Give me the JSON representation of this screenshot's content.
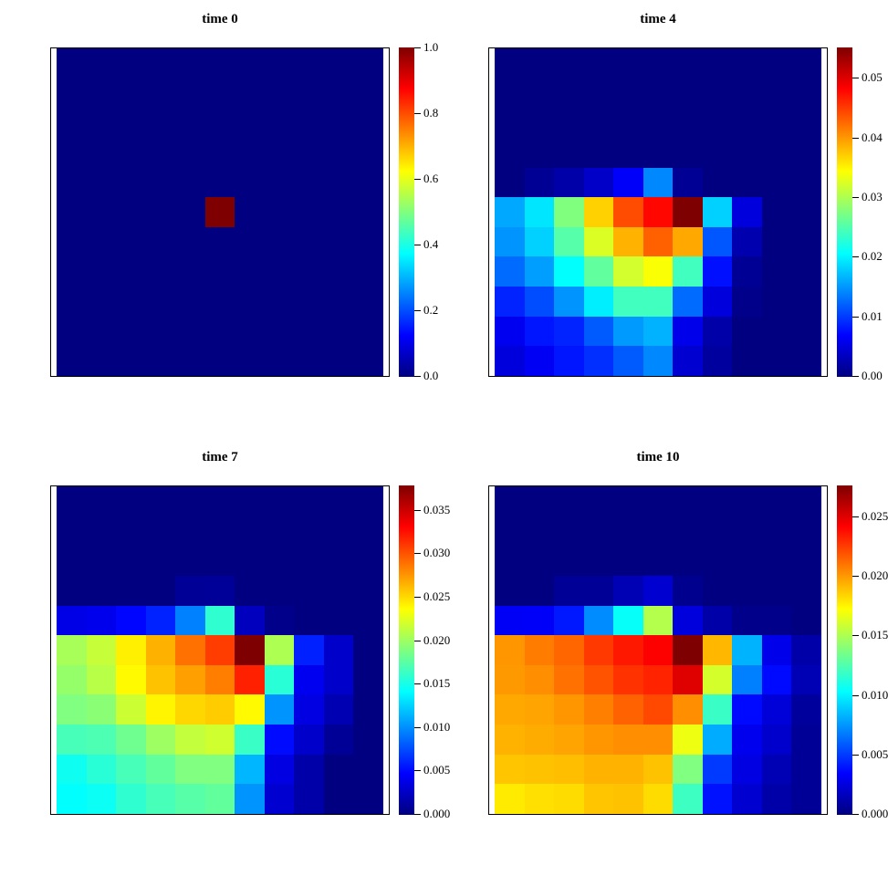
{
  "page": {
    "background": "#FFFFFF"
  },
  "colormap": {
    "name": "jet",
    "stops": [
      [
        0.0,
        "#000080"
      ],
      [
        0.125,
        "#0000FF"
      ],
      [
        0.375,
        "#00FFFF"
      ],
      [
        0.625,
        "#FFFF00"
      ],
      [
        0.875,
        "#FF0000"
      ],
      [
        1.0,
        "#7F0000"
      ]
    ]
  },
  "chart_data": [
    {
      "type": "heatmap",
      "title": "time 0",
      "rows": 11,
      "cols": 11,
      "zmax": 1.0,
      "colorbar_ticks": [
        0,
        0.2,
        0.4,
        0.6,
        0.8,
        1.0
      ],
      "tick_decimals": 1,
      "values": [
        [
          0,
          0,
          0,
          0,
          0,
          0,
          0,
          0,
          0,
          0,
          0
        ],
        [
          0,
          0,
          0,
          0,
          0,
          0,
          0,
          0,
          0,
          0,
          0
        ],
        [
          0,
          0,
          0,
          0,
          0,
          0,
          0,
          0,
          0,
          0,
          0
        ],
        [
          0,
          0,
          0,
          0,
          0,
          0,
          0,
          0,
          0,
          0,
          0
        ],
        [
          0,
          0,
          0,
          0,
          0,
          0,
          0,
          0,
          0,
          0,
          0
        ],
        [
          0,
          0,
          0,
          0,
          0,
          1.0,
          0,
          0,
          0,
          0,
          0
        ],
        [
          0,
          0,
          0,
          0,
          0,
          0,
          0,
          0,
          0,
          0,
          0
        ],
        [
          0,
          0,
          0,
          0,
          0,
          0,
          0,
          0,
          0,
          0,
          0
        ],
        [
          0,
          0,
          0,
          0,
          0,
          0,
          0,
          0,
          0,
          0,
          0
        ],
        [
          0,
          0,
          0,
          0,
          0,
          0,
          0,
          0,
          0,
          0,
          0
        ],
        [
          0,
          0,
          0,
          0,
          0,
          0,
          0,
          0,
          0,
          0,
          0
        ]
      ]
    },
    {
      "type": "heatmap",
      "title": "time 4",
      "rows": 11,
      "cols": 11,
      "zmax": 0.0551,
      "colorbar_ticks": [
        0,
        0.01,
        0.02,
        0.03,
        0.04,
        0.05
      ],
      "tick_decimals": 2,
      "values": [
        [
          0,
          0,
          0,
          0,
          0,
          0,
          0,
          0,
          0,
          0,
          0
        ],
        [
          0,
          0,
          0,
          0,
          0,
          0,
          0,
          0,
          0,
          0,
          0
        ],
        [
          0,
          0,
          0,
          0,
          0,
          0,
          0,
          0,
          0,
          0,
          0
        ],
        [
          0,
          0,
          0,
          0,
          0,
          0,
          0,
          0,
          0,
          0,
          0
        ],
        [
          0,
          0.0011,
          0.0022,
          0.0039,
          0.0066,
          0.0143,
          0.0011,
          0,
          0,
          0,
          0
        ],
        [
          0.016,
          0.0193,
          0.0276,
          0.0369,
          0.0441,
          0.0479,
          0.0551,
          0.0182,
          0.005,
          0,
          0
        ],
        [
          0.0149,
          0.0182,
          0.0253,
          0.0325,
          0.0386,
          0.043,
          0.0391,
          0.0116,
          0.0025,
          0,
          0
        ],
        [
          0.0127,
          0.0154,
          0.0207,
          0.0259,
          0.032,
          0.0342,
          0.0242,
          0.0077,
          0.0011,
          0,
          0
        ],
        [
          0.0088,
          0.011,
          0.0149,
          0.0198,
          0.0242,
          0.0242,
          0.0127,
          0.005,
          0.0006,
          0,
          0
        ],
        [
          0.0061,
          0.008,
          0.0088,
          0.0118,
          0.0152,
          0.0165,
          0.0058,
          0.0022,
          0,
          0,
          0
        ],
        [
          0.005,
          0.0063,
          0.008,
          0.0094,
          0.0118,
          0.0143,
          0.0044,
          0.0017,
          0,
          0,
          0
        ]
      ]
    },
    {
      "type": "heatmap",
      "title": "time 7",
      "rows": 11,
      "cols": 11,
      "zmax": 0.0378,
      "colorbar_ticks": [
        0,
        0.005,
        0.01,
        0.015,
        0.02,
        0.025,
        0.03,
        0.035
      ],
      "tick_decimals": 3,
      "values": [
        [
          0,
          0,
          0,
          0,
          0,
          0,
          0,
          0,
          0,
          0,
          0
        ],
        [
          0,
          0,
          0,
          0,
          0,
          0,
          0,
          0,
          0,
          0,
          0
        ],
        [
          0,
          0,
          0,
          0,
          0,
          0,
          0,
          0,
          0,
          0,
          0
        ],
        [
          0,
          0,
          0,
          0,
          0.0008,
          0.0009,
          0,
          0,
          0,
          0,
          0
        ],
        [
          0.0038,
          0.004,
          0.0049,
          0.006,
          0.0095,
          0.0159,
          0.0023,
          0.0004,
          0,
          0,
          0
        ],
        [
          0.0204,
          0.0215,
          0.0242,
          0.0265,
          0.0289,
          0.0308,
          0.0378,
          0.0206,
          0.0059,
          0.0028,
          0
        ],
        [
          0.0197,
          0.021,
          0.0238,
          0.0259,
          0.0272,
          0.0284,
          0.0319,
          0.0157,
          0.0042,
          0.0028,
          0
        ],
        [
          0.0189,
          0.0193,
          0.0217,
          0.024,
          0.0251,
          0.0255,
          0.0238,
          0.0102,
          0.0037,
          0.0019,
          0
        ],
        [
          0.0168,
          0.017,
          0.0183,
          0.02,
          0.0214,
          0.0219,
          0.0163,
          0.0051,
          0.0028,
          0.0008,
          0
        ],
        [
          0.0147,
          0.0157,
          0.0168,
          0.0178,
          0.0189,
          0.0189,
          0.0115,
          0.0037,
          0.0015,
          0,
          0
        ],
        [
          0.0142,
          0.0146,
          0.0159,
          0.0168,
          0.0174,
          0.0178,
          0.0102,
          0.003,
          0.0015,
          0,
          0
        ]
      ]
    },
    {
      "type": "heatmap",
      "title": "time 10",
      "rows": 11,
      "cols": 11,
      "zmax": 0.0276,
      "colorbar_ticks": [
        0,
        0.005,
        0.01,
        0.015,
        0.02,
        0.025
      ],
      "tick_decimals": 3,
      "values": [
        [
          0,
          0,
          0,
          0,
          0,
          0,
          0,
          0,
          0,
          0,
          0
        ],
        [
          0,
          0,
          0,
          0,
          0,
          0,
          0,
          0,
          0,
          0,
          0
        ],
        [
          0,
          0,
          0,
          0,
          0,
          0,
          0,
          0,
          0,
          0,
          0
        ],
        [
          0,
          0,
          0.0006,
          0.0006,
          0.0014,
          0.0022,
          0.0004,
          0,
          0,
          0,
          0
        ],
        [
          0.0032,
          0.0033,
          0.0041,
          0.0072,
          0.0105,
          0.0152,
          0.0025,
          0.0011,
          0.0003,
          0.0003,
          0
        ],
        [
          0.0201,
          0.0208,
          0.0214,
          0.0226,
          0.0235,
          0.0242,
          0.0276,
          0.0192,
          0.0083,
          0.0029,
          0.0011
        ],
        [
          0.02,
          0.0203,
          0.0211,
          0.0219,
          0.0228,
          0.0232,
          0.025,
          0.0161,
          0.0069,
          0.0037,
          0.0014
        ],
        [
          0.0196,
          0.0197,
          0.0201,
          0.0207,
          0.0215,
          0.0222,
          0.0203,
          0.0119,
          0.0037,
          0.0024,
          0.0008
        ],
        [
          0.0193,
          0.0195,
          0.0197,
          0.0201,
          0.0203,
          0.0203,
          0.0168,
          0.0081,
          0.003,
          0.0021,
          0.0006
        ],
        [
          0.0188,
          0.0189,
          0.019,
          0.0193,
          0.0193,
          0.0189,
          0.0138,
          0.005,
          0.0027,
          0.0014,
          0.0006
        ],
        [
          0.0178,
          0.0181,
          0.0182,
          0.0188,
          0.0189,
          0.0182,
          0.012,
          0.0039,
          0.0022,
          0.0011,
          0.0006
        ]
      ]
    }
  ]
}
